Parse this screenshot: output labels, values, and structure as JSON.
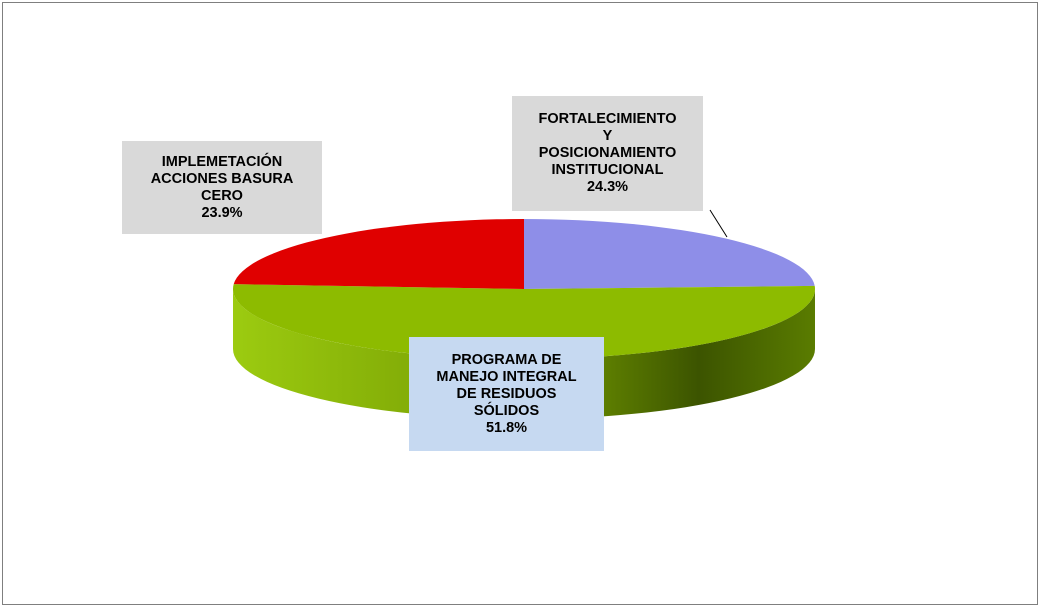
{
  "chart_data": {
    "type": "pie",
    "style": "3d",
    "slices": [
      {
        "label": "FORTALECIMIENTO Y POSICIONAMIENTO INSTITUCIONAL",
        "label_lines": [
          "FORTALECIMIENTO",
          "Y",
          "POSICIONAMIENTO",
          "INSTITUCIONAL"
        ],
        "value": 24.3,
        "value_label": "24.3%",
        "color": "#8e8ee8",
        "label_bg": "#d9d9d9"
      },
      {
        "label": "PROGRAMA DE MANEJO INTEGRAL DE RESIDUOS SÓLIDOS",
        "label_lines": [
          "PROGRAMA DE",
          "MANEJO INTEGRAL",
          "DE RESIDUOS",
          "SÓLIDOS"
        ],
        "value": 51.8,
        "value_label": "51.8%",
        "color": "#8dbb00",
        "label_bg": "#c6d9f1"
      },
      {
        "label": "IMPLEMETACIÓN ACCIONES BASURA CERO",
        "label_lines": [
          "IMPLEMETACIÓN",
          "ACCIONES BASURA",
          "CERO"
        ],
        "value": 23.9,
        "value_label": "23.9%",
        "color": "#e00000",
        "label_bg": "#d9d9d9"
      }
    ],
    "legend": "none"
  }
}
